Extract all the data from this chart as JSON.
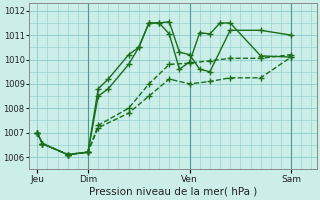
{
  "background_color": "#cceee8",
  "grid_color": "#88cccc",
  "line_color": "#1a6e1a",
  "title": "Pression niveau de la mer( hPa )",
  "ylim": [
    1005.5,
    1012.3
  ],
  "yticks": [
    1006,
    1007,
    1008,
    1009,
    1010,
    1011,
    1012
  ],
  "day_labels": [
    "Jeu",
    "Dim",
    "Ven",
    "Sam"
  ],
  "day_positions": [
    0,
    30,
    90,
    150
  ],
  "xlim": [
    -5,
    165
  ],
  "series": [
    {
      "points": [
        [
          0,
          1007.0
        ],
        [
          3,
          1006.55
        ],
        [
          18,
          1006.1
        ],
        [
          30,
          1006.2
        ],
        [
          36,
          1008.8
        ],
        [
          42,
          1009.2
        ],
        [
          54,
          1010.2
        ],
        [
          60,
          1010.5
        ],
        [
          66,
          1011.5
        ],
        [
          72,
          1011.5
        ],
        [
          78,
          1011.05
        ],
        [
          84,
          1009.6
        ],
        [
          90,
          1009.9
        ],
        [
          96,
          1011.1
        ],
        [
          102,
          1011.05
        ],
        [
          108,
          1011.5
        ],
        [
          114,
          1011.5
        ],
        [
          132,
          1010.15
        ],
        [
          150,
          1010.1
        ]
      ],
      "dashed": false
    },
    {
      "points": [
        [
          0,
          1007.0
        ],
        [
          3,
          1006.55
        ],
        [
          18,
          1006.1
        ],
        [
          30,
          1006.2
        ],
        [
          36,
          1008.5
        ],
        [
          42,
          1008.8
        ],
        [
          54,
          1009.8
        ],
        [
          60,
          1010.5
        ],
        [
          66,
          1011.5
        ],
        [
          72,
          1011.5
        ],
        [
          78,
          1011.55
        ],
        [
          84,
          1010.3
        ],
        [
          90,
          1010.2
        ],
        [
          96,
          1009.6
        ],
        [
          102,
          1009.5
        ],
        [
          114,
          1011.2
        ],
        [
          132,
          1011.2
        ],
        [
          150,
          1011.0
        ]
      ],
      "dashed": false
    },
    {
      "points": [
        [
          0,
          1007.0
        ],
        [
          3,
          1006.55
        ],
        [
          18,
          1006.1
        ],
        [
          30,
          1006.2
        ],
        [
          36,
          1007.3
        ],
        [
          54,
          1008.0
        ],
        [
          66,
          1009.0
        ],
        [
          78,
          1009.8
        ],
        [
          90,
          1009.85
        ],
        [
          102,
          1009.95
        ],
        [
          114,
          1010.05
        ],
        [
          132,
          1010.05
        ],
        [
          150,
          1010.2
        ]
      ],
      "dashed": true
    },
    {
      "points": [
        [
          0,
          1007.0
        ],
        [
          3,
          1006.55
        ],
        [
          18,
          1006.1
        ],
        [
          30,
          1006.2
        ],
        [
          36,
          1007.2
        ],
        [
          54,
          1007.8
        ],
        [
          66,
          1008.5
        ],
        [
          78,
          1009.2
        ],
        [
          90,
          1009.0
        ],
        [
          102,
          1009.1
        ],
        [
          114,
          1009.25
        ],
        [
          132,
          1009.25
        ],
        [
          150,
          1010.1
        ]
      ],
      "dashed": true
    }
  ],
  "vline_positions": [
    30,
    90,
    150
  ],
  "marker": "+",
  "markersize": 4,
  "linewidth": 1.0,
  "dpi": 100,
  "figsize": [
    3.2,
    2.0
  ]
}
